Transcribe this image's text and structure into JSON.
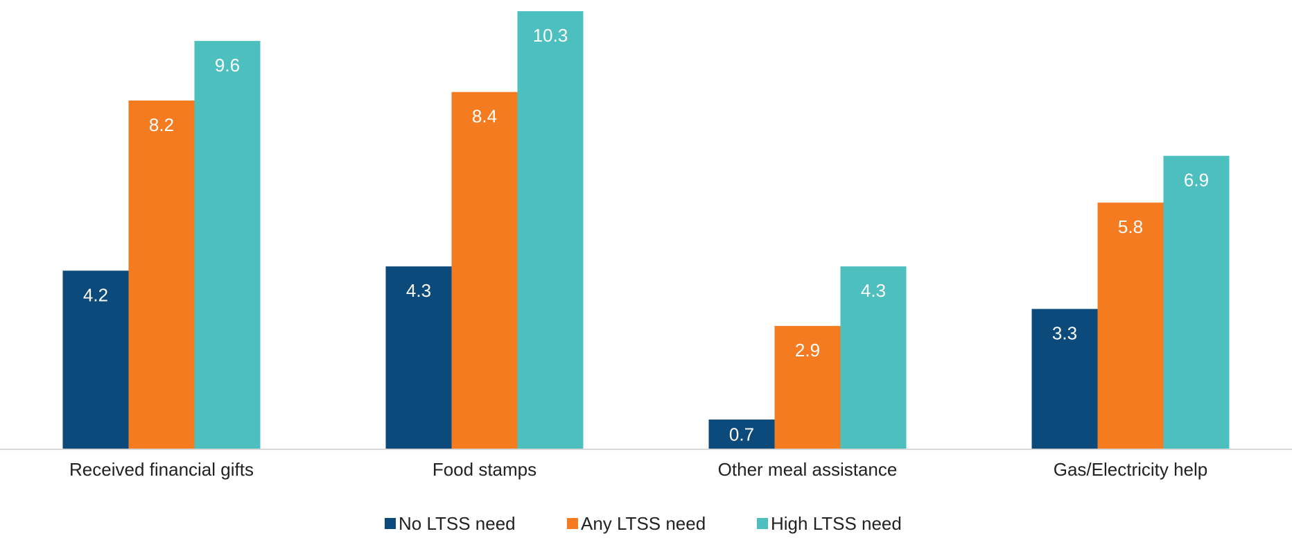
{
  "chart_data": {
    "type": "bar",
    "categories": [
      "Received financial gifts",
      "Food stamps",
      "Other meal assistance",
      "Gas/Electricity help"
    ],
    "series": [
      {
        "name": "No LTSS need",
        "color": "#0B4A7A",
        "values": [
          4.2,
          4.3,
          0.7,
          3.3
        ]
      },
      {
        "name": "Any LTSS need",
        "color": "#F47B20",
        "values": [
          8.2,
          8.4,
          2.9,
          5.8
        ]
      },
      {
        "name": "High LTSS need",
        "color": "#4DBFBF",
        "values": [
          9.6,
          10.3,
          4.3,
          6.9
        ]
      }
    ],
    "ylim": [
      0,
      10.4
    ],
    "grid": false,
    "legend_position": "bottom",
    "data_labels": true
  }
}
